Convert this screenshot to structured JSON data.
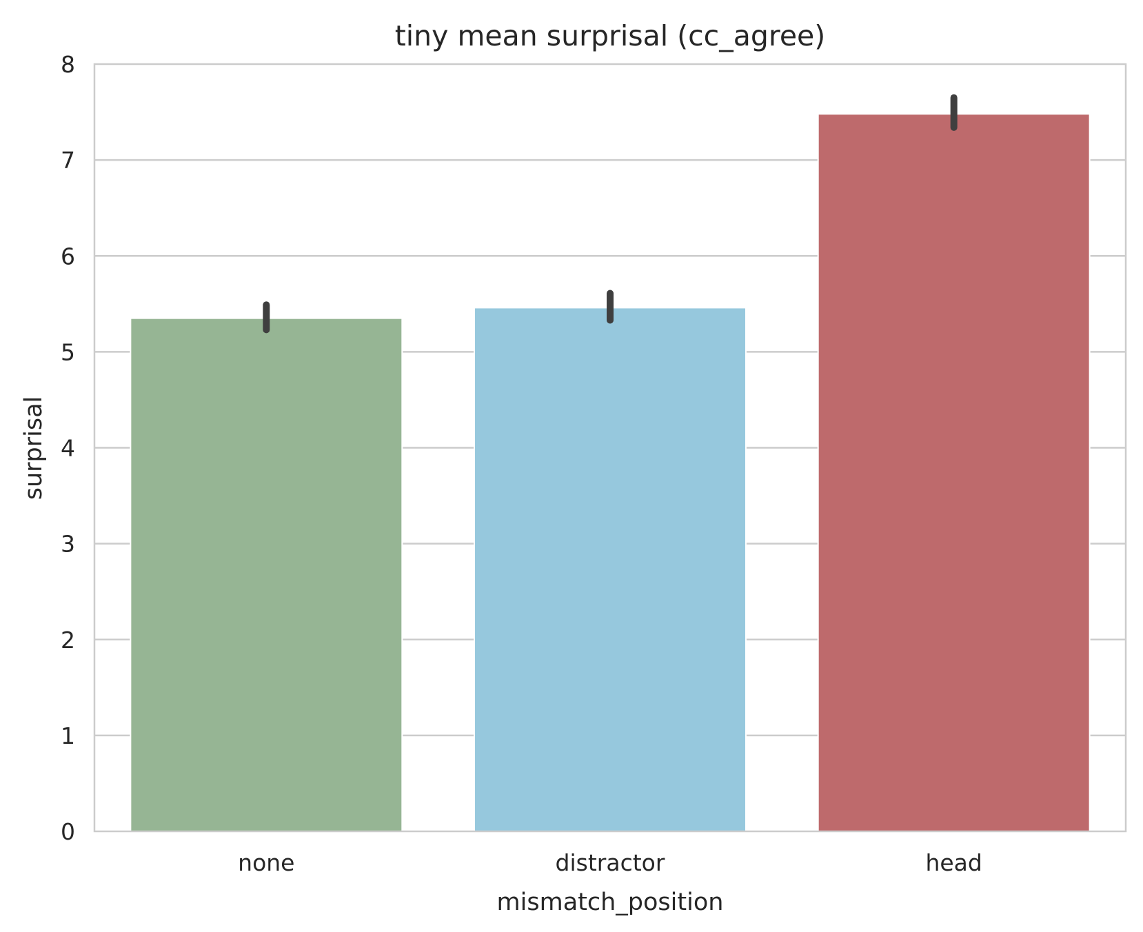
{
  "chart_data": {
    "type": "bar",
    "title": "tiny mean surprisal (cc_agree)",
    "xlabel": "mismatch_position",
    "ylabel": "surprisal",
    "categories": [
      "none",
      "distractor",
      "head"
    ],
    "values": [
      5.35,
      5.46,
      7.48
    ],
    "error_low": [
      5.23,
      5.33,
      7.34
    ],
    "error_high": [
      5.49,
      5.61,
      7.65
    ],
    "colors": [
      "#96b594",
      "#96c8dd",
      "#be6a6c"
    ],
    "ylim": [
      0,
      8
    ],
    "yticks": [
      0,
      1,
      2,
      3,
      4,
      5,
      6,
      7,
      8
    ],
    "grid": true,
    "grid_axis": "y",
    "legend": "none",
    "error_color": "#3f3f3f"
  }
}
